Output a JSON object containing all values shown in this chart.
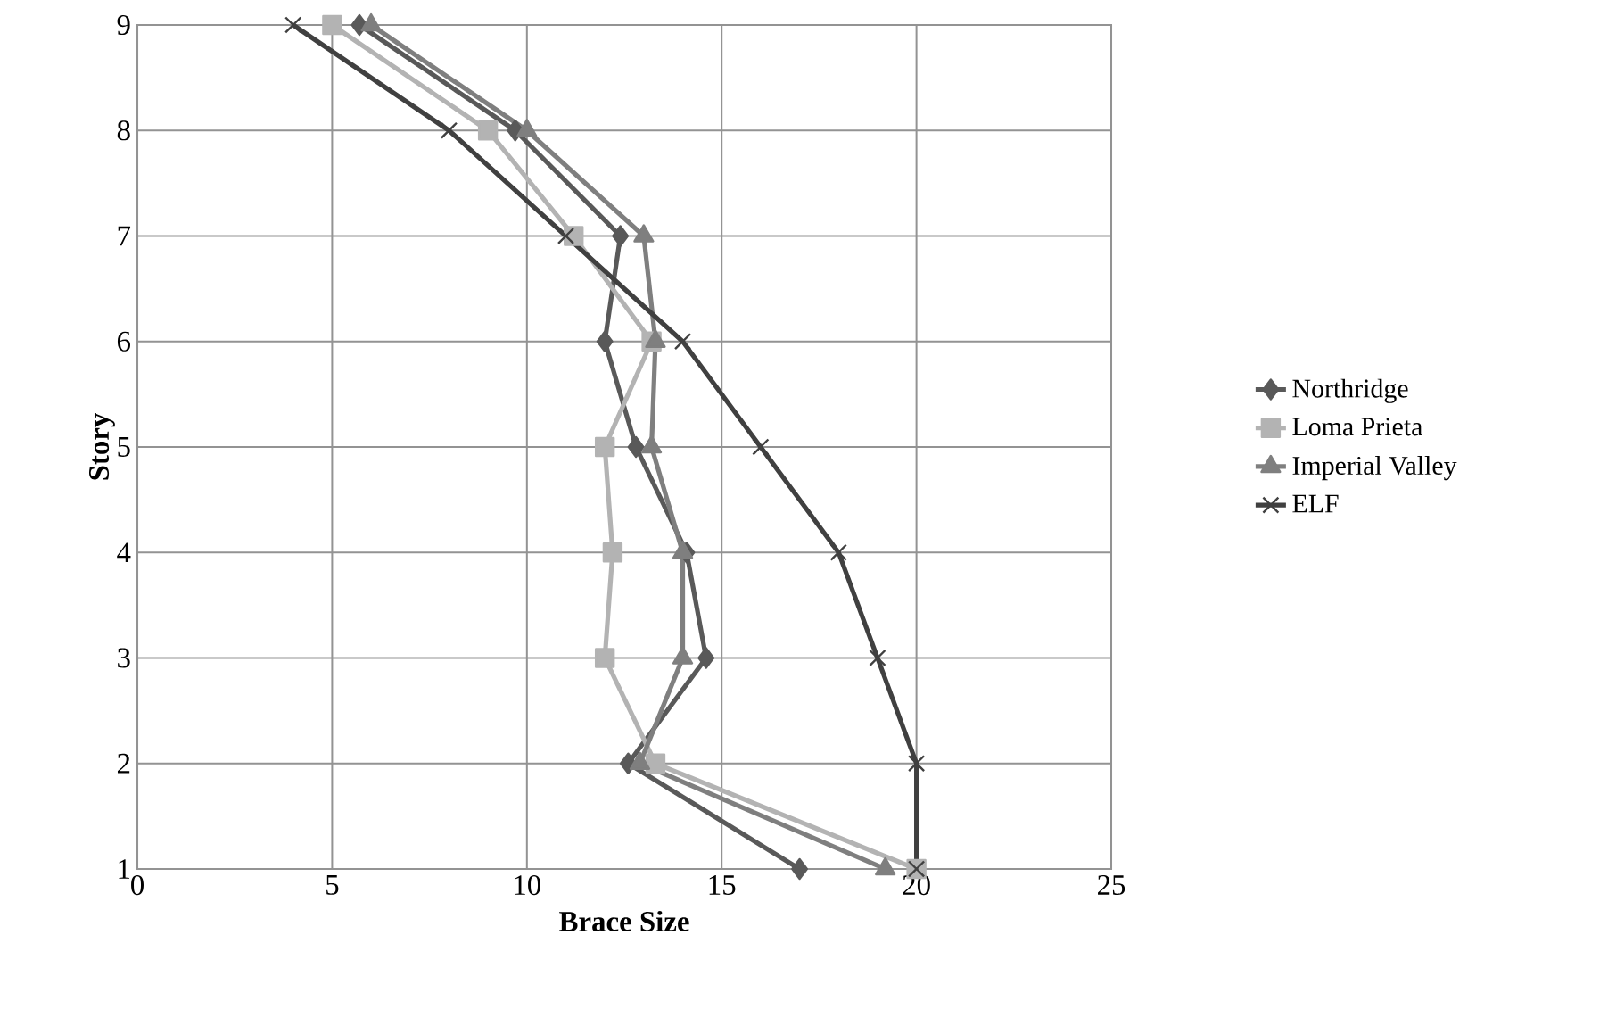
{
  "chart_data": {
    "type": "line",
    "xlabel": "Brace Size",
    "ylabel": "Story",
    "xlim": [
      0,
      25
    ],
    "xticks": [
      0,
      5,
      10,
      15,
      20,
      25
    ],
    "ylim": [
      1,
      9
    ],
    "yticks": [
      1,
      2,
      3,
      4,
      5,
      6,
      7,
      8,
      9
    ],
    "grid": true,
    "legend": "right",
    "line_style": "solid",
    "series": [
      {
        "name": "Northridge",
        "color": "#595959",
        "marker": "diamond",
        "x": [
          17.0,
          12.6,
          14.6,
          14.1,
          12.8,
          12.0,
          12.4,
          9.7,
          5.7
        ],
        "values": [
          1,
          2,
          3,
          4,
          5,
          6,
          7,
          8,
          9
        ]
      },
      {
        "name": "Loma Prieta",
        "color": "#b3b3b3",
        "marker": "square",
        "x": [
          20.0,
          13.3,
          12.0,
          12.2,
          12.0,
          13.2,
          11.2,
          9.0,
          5.0
        ],
        "values": [
          1,
          2,
          3,
          4,
          5,
          6,
          7,
          8,
          9
        ]
      },
      {
        "name": "Imperial Valley",
        "color": "#7f7f7f",
        "marker": "triangle",
        "x": [
          19.2,
          12.9,
          14.0,
          14.0,
          13.2,
          13.3,
          13.0,
          10.0,
          6.0
        ],
        "values": [
          1,
          2,
          3,
          4,
          5,
          6,
          7,
          8,
          9
        ]
      },
      {
        "name": "ELF",
        "color": "#404040",
        "marker": "cross",
        "x": [
          20.0,
          20.0,
          19.0,
          18.0,
          16.0,
          14.0,
          11.0,
          8.0,
          4.0
        ],
        "values": [
          1,
          2,
          3,
          4,
          5,
          6,
          7,
          8,
          9
        ]
      }
    ]
  }
}
